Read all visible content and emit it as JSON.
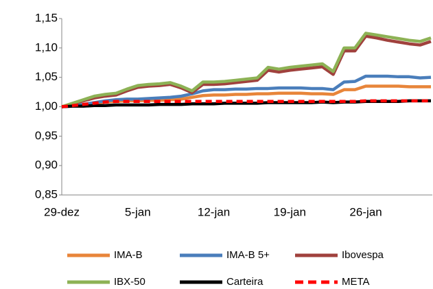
{
  "chart_data": {
    "type": "line",
    "categories": [
      "29-dez",
      null,
      null,
      null,
      null,
      null,
      null,
      "5-jan",
      null,
      null,
      null,
      null,
      null,
      null,
      "12-jan",
      null,
      null,
      null,
      null,
      null,
      null,
      "19-jan",
      null,
      null,
      null,
      null,
      null,
      null,
      "26-jan",
      null,
      null,
      null,
      null,
      null,
      null
    ],
    "ylim": [
      0.85,
      1.15
    ],
    "yticks": [
      {
        "value": 0.85,
        "label": "0,85"
      },
      {
        "value": 0.9,
        "label": "0,90"
      },
      {
        "value": 0.95,
        "label": "0,95"
      },
      {
        "value": 1.0,
        "label": "1,00"
      },
      {
        "value": 1.05,
        "label": "1,05"
      },
      {
        "value": 1.1,
        "label": "1,10"
      },
      {
        "value": 1.15,
        "label": "1,15"
      }
    ],
    "grid": false,
    "legend": "bottom",
    "series": [
      {
        "name": "IMA-B",
        "color": "#e8853a",
        "dashed": false,
        "values": [
          1.0,
          1.002,
          1.004,
          1.006,
          1.008,
          1.009,
          1.01,
          1.01,
          1.011,
          1.011,
          1.012,
          1.013,
          1.016,
          1.019,
          1.02,
          1.02,
          1.021,
          1.021,
          1.022,
          1.022,
          1.023,
          1.023,
          1.023,
          1.022,
          1.022,
          1.021,
          1.029,
          1.029,
          1.035,
          1.035,
          1.035,
          1.035,
          1.034,
          1.034,
          1.034
        ]
      },
      {
        "name": "IMA-B 5+",
        "color": "#4a7ebb",
        "dashed": false,
        "values": [
          1.0,
          1.002,
          1.004,
          1.007,
          1.01,
          1.012,
          1.013,
          1.013,
          1.014,
          1.015,
          1.016,
          1.018,
          1.022,
          1.027,
          1.029,
          1.029,
          1.03,
          1.03,
          1.031,
          1.031,
          1.032,
          1.032,
          1.032,
          1.031,
          1.031,
          1.029,
          1.042,
          1.043,
          1.052,
          1.052,
          1.052,
          1.051,
          1.051,
          1.049,
          1.05
        ]
      },
      {
        "name": "Ibovespa",
        "color": "#a0413d",
        "dashed": false,
        "values": [
          1.0,
          1.005,
          1.01,
          1.015,
          1.018,
          1.02,
          1.027,
          1.033,
          1.035,
          1.036,
          1.038,
          1.032,
          1.024,
          1.038,
          1.038,
          1.039,
          1.041,
          1.043,
          1.045,
          1.062,
          1.059,
          1.062,
          1.064,
          1.066,
          1.068,
          1.055,
          1.095,
          1.095,
          1.12,
          1.117,
          1.113,
          1.11,
          1.107,
          1.105,
          1.111
        ]
      },
      {
        "name": "IBX-50",
        "color": "#8db255",
        "dashed": false,
        "values": [
          1.0,
          1.006,
          1.012,
          1.018,
          1.021,
          1.023,
          1.03,
          1.036,
          1.038,
          1.039,
          1.041,
          1.035,
          1.027,
          1.042,
          1.042,
          1.043,
          1.045,
          1.047,
          1.049,
          1.067,
          1.064,
          1.067,
          1.069,
          1.071,
          1.073,
          1.06,
          1.1,
          1.1,
          1.125,
          1.122,
          1.119,
          1.116,
          1.113,
          1.111,
          1.117
        ]
      },
      {
        "name": "Carteira",
        "color": "#000000",
        "dashed": false,
        "values": [
          1.0,
          1.001,
          1.001,
          1.002,
          1.002,
          1.003,
          1.003,
          1.003,
          1.003,
          1.004,
          1.004,
          1.004,
          1.005,
          1.005,
          1.005,
          1.006,
          1.006,
          1.006,
          1.006,
          1.007,
          1.007,
          1.007,
          1.007,
          1.007,
          1.008,
          1.007,
          1.008,
          1.008,
          1.009,
          1.009,
          1.009,
          1.009,
          1.01,
          1.01,
          1.01
        ]
      },
      {
        "name": "META",
        "color": "#ff0000",
        "dashed": true,
        "values": [
          1.0,
          1.002,
          1.004,
          1.006,
          1.008,
          1.009,
          1.009,
          1.009,
          1.009,
          1.009,
          1.009,
          1.009,
          1.009,
          1.009,
          1.009,
          1.009,
          1.009,
          1.009,
          1.009,
          1.009,
          1.009,
          1.009,
          1.009,
          1.009,
          1.009,
          1.009,
          1.009,
          1.009,
          1.01,
          1.01,
          1.01,
          1.01,
          1.01,
          1.01,
          1.01
        ]
      }
    ]
  }
}
